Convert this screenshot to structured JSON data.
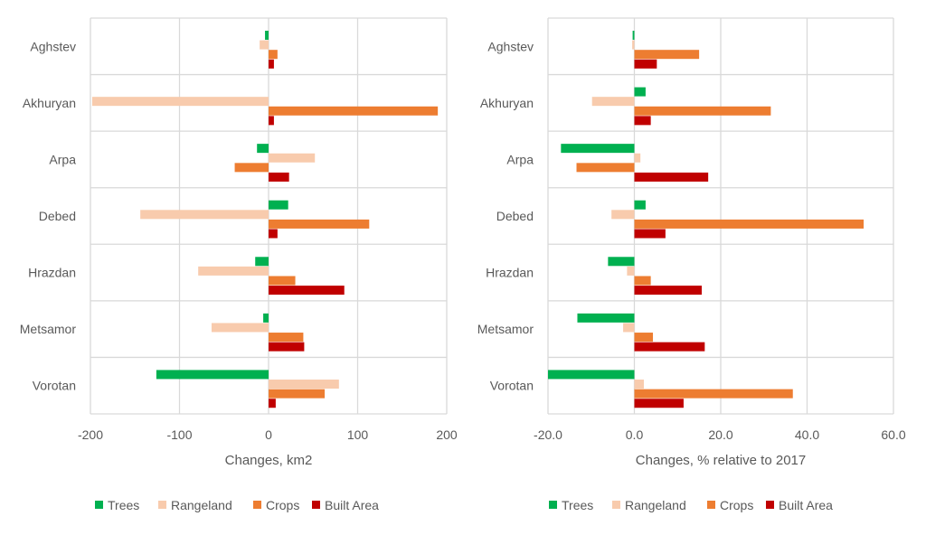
{
  "colors": {
    "Trees": "#00b050",
    "Rangeland": "#f8cbad",
    "Crops": "#ed7d31",
    "Built Area": "#c00000",
    "grid": "#d9d9d9"
  },
  "chart_data": [
    {
      "type": "bar",
      "orientation": "horizontal",
      "categories": [
        "Aghstev",
        "Akhuryan",
        "Arpa",
        "Debed",
        "Hrazdan",
        "Metsamor",
        "Vorotan"
      ],
      "series": [
        {
          "name": "Trees",
          "values": [
            -4,
            0,
            -13,
            22,
            -15,
            -6,
            -126
          ]
        },
        {
          "name": "Rangeland",
          "values": [
            -10,
            -198,
            52,
            -144,
            -79,
            -64,
            79
          ]
        },
        {
          "name": "Crops",
          "values": [
            10,
            190,
            -38,
            113,
            30,
            39,
            63
          ]
        },
        {
          "name": "Built Area",
          "values": [
            6,
            6,
            23,
            10,
            85,
            40,
            8
          ]
        }
      ],
      "xlabel": "Changes, km2",
      "ylabel": "",
      "xlim": [
        -200,
        200
      ],
      "xticks": [
        "-200",
        "-100",
        "0",
        "100",
        "200"
      ],
      "grid": true,
      "legend": "bottom"
    },
    {
      "type": "bar",
      "orientation": "horizontal",
      "categories": [
        "Aghstev",
        "Akhuryan",
        "Arpa",
        "Debed",
        "Hrazdan",
        "Metsamor",
        "Vorotan"
      ],
      "series": [
        {
          "name": "Trees",
          "values": [
            -0.4,
            2.6,
            -17.0,
            2.6,
            -6.1,
            -13.2,
            -20.0
          ]
        },
        {
          "name": "Rangeland",
          "values": [
            -0.5,
            -9.8,
            1.4,
            -5.3,
            -1.7,
            -2.6,
            2.2
          ]
        },
        {
          "name": "Crops",
          "values": [
            15.0,
            31.6,
            -13.4,
            53.1,
            3.8,
            4.3,
            36.7
          ]
        },
        {
          "name": "Built Area",
          "values": [
            5.2,
            3.8,
            17.1,
            7.2,
            15.6,
            16.3,
            11.4
          ]
        }
      ],
      "xlabel": "Changes, % relative to 2017",
      "ylabel": "",
      "xlim": [
        -20,
        60
      ],
      "xticks": [
        "-20.0",
        "0.0",
        "20.0",
        "40.0",
        "60.0"
      ],
      "grid": true,
      "legend": "bottom"
    }
  ]
}
